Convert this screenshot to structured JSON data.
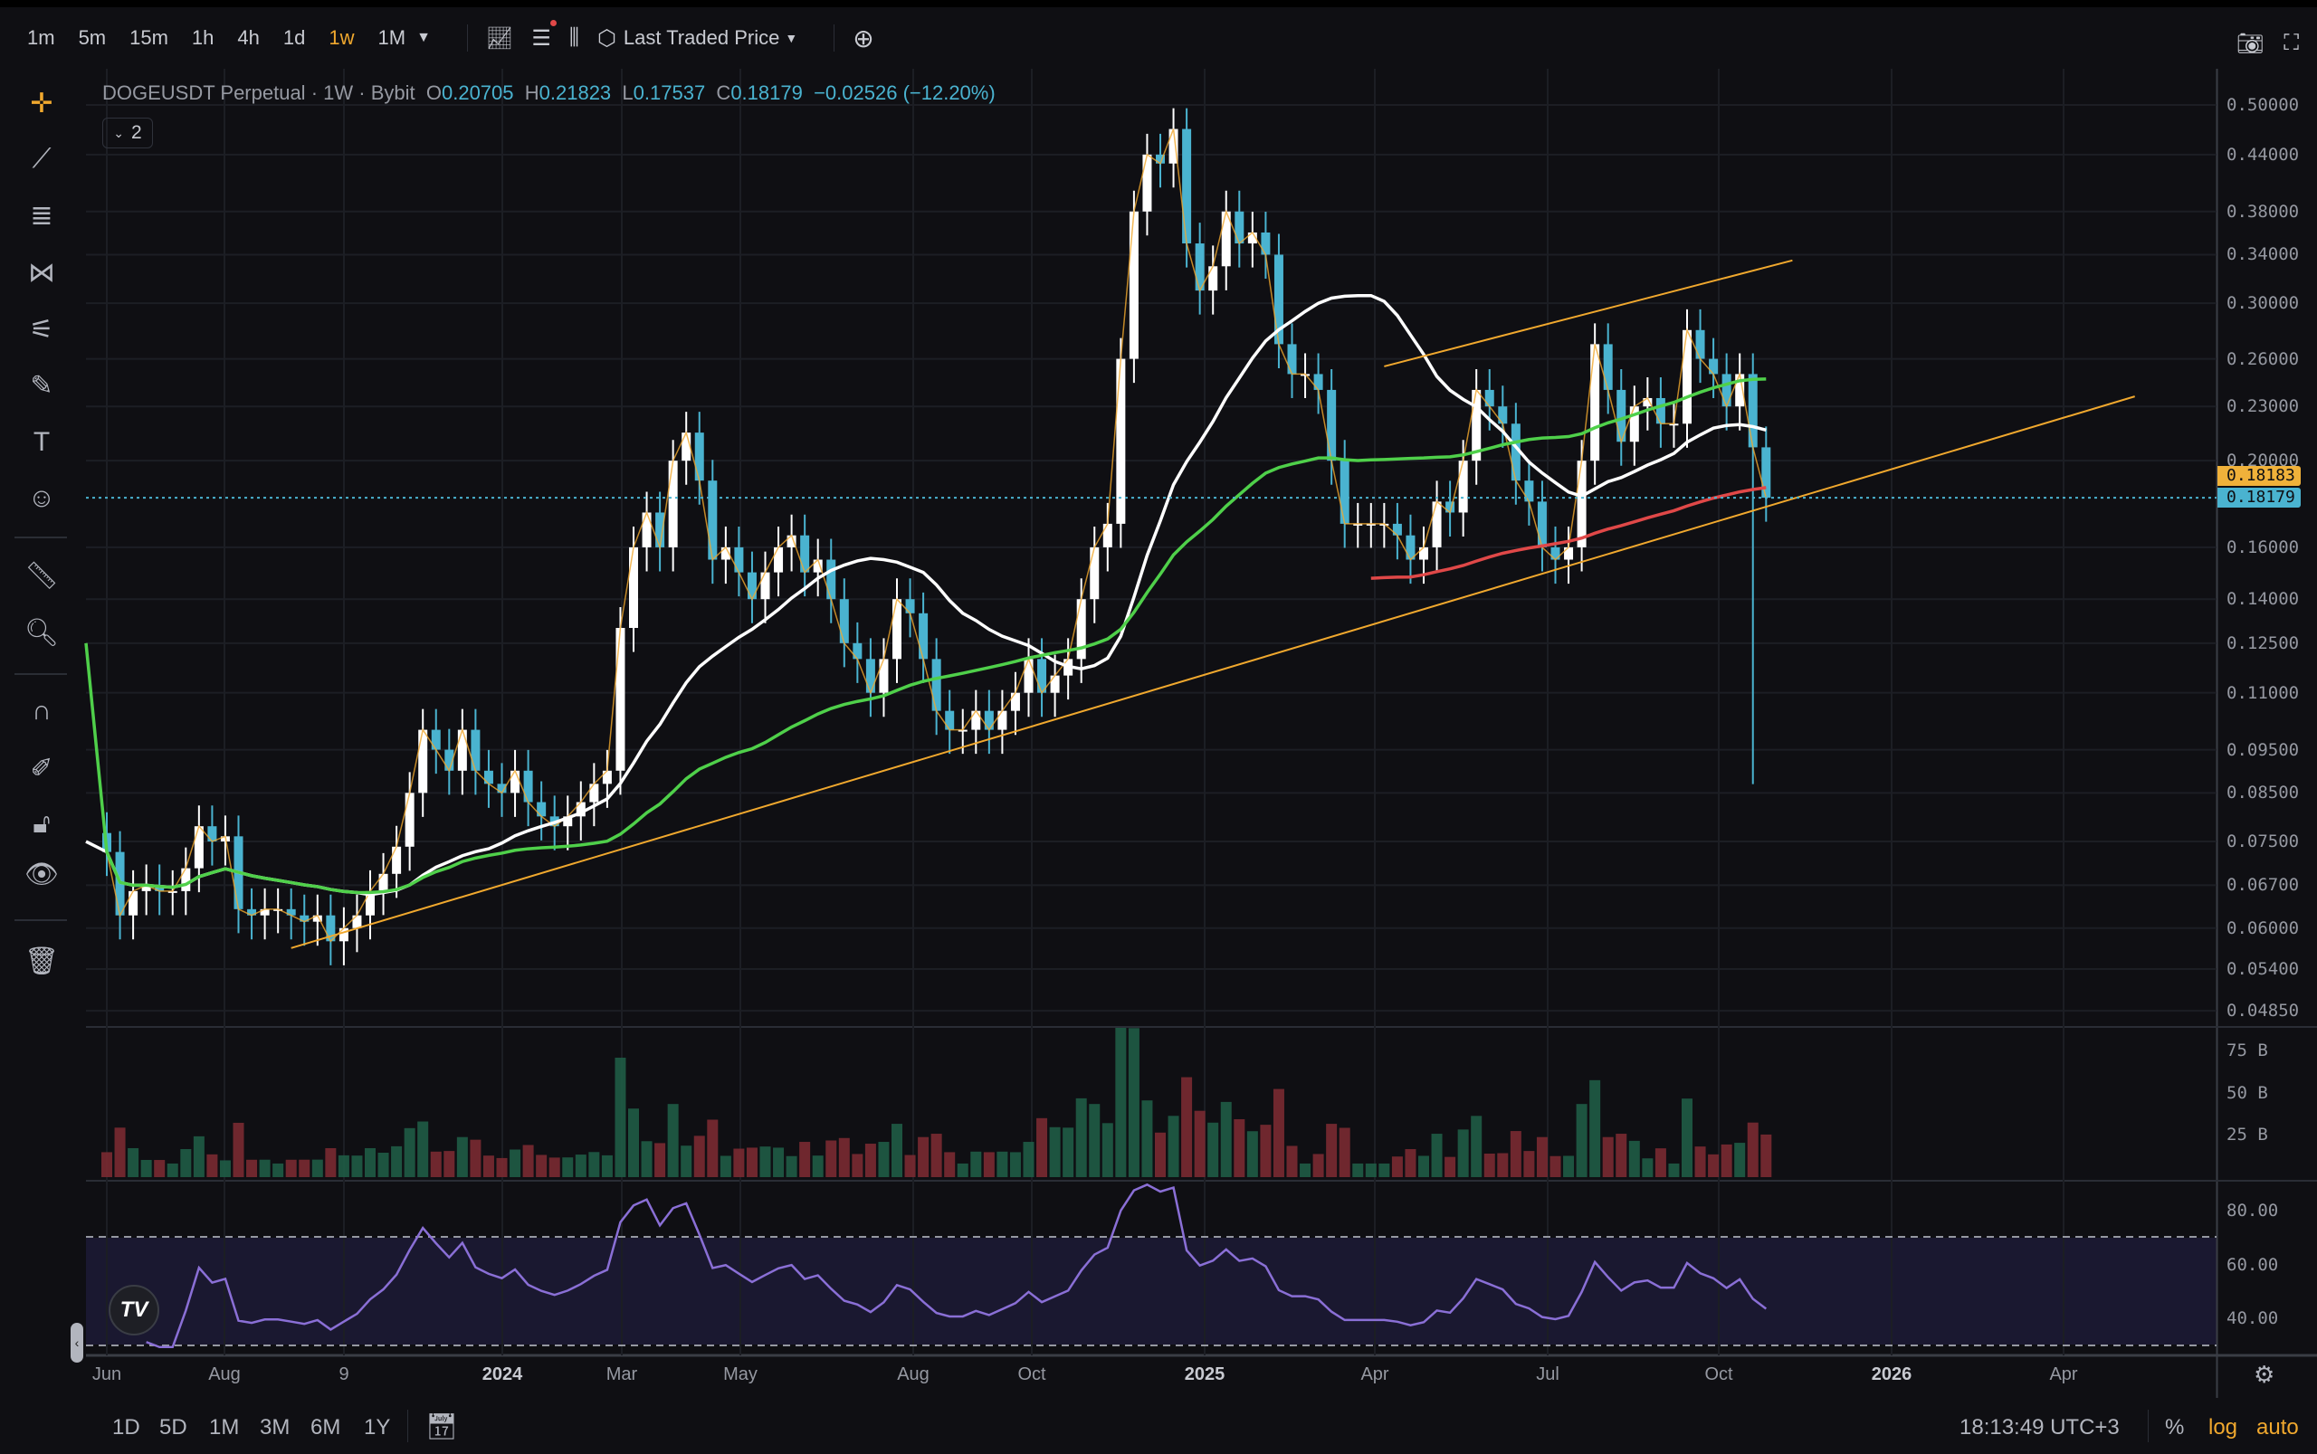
{
  "toolbar": {
    "timeframes": [
      "1m",
      "5m",
      "15m",
      "1h",
      "4h",
      "1d",
      "1w",
      "1M"
    ],
    "active_timeframe": "1w",
    "price_source": "Last Traded Price",
    "icons": [
      "indicators-icon",
      "chart-settings-icon",
      "candle-type-icon",
      "price-source-icon",
      "add-icon",
      "camera-icon",
      "fullscreen-icon"
    ]
  },
  "legend": {
    "symbol": "DOGEUSDT Perpetual",
    "interval": "1W",
    "exchange": "Bybit",
    "open_label": "O",
    "open": "0.20705",
    "high_label": "H",
    "high": "0.21823",
    "low_label": "L",
    "low": "0.17537",
    "close_label": "C",
    "close": "0.18179",
    "change": "−0.02526 (−12.20%)",
    "collapsed_count": "2"
  },
  "price_axis": {
    "labels": [
      "0.50000",
      "0.44000",
      "0.38000",
      "0.34000",
      "0.30000",
      "0.26000",
      "0.23000",
      "0.20000",
      "0.16000",
      "0.14000",
      "0.12500",
      "0.11000",
      "0.09500",
      "0.08500",
      "0.07500",
      "0.06700",
      "0.06000",
      "0.05400",
      "0.04850"
    ],
    "badge_prev": "0.18183",
    "badge_last": "0.18179",
    "scale": "log"
  },
  "volume_axis": {
    "labels": [
      "75 B",
      "50 B",
      "25 B"
    ]
  },
  "rsi_axis": {
    "labels": [
      "80.00",
      "60.00",
      "40.00"
    ],
    "upper": 70,
    "lower": 30
  },
  "time_axis": {
    "labels": [
      "Jun",
      "Aug",
      "9",
      "2024",
      "Mar",
      "May",
      "Aug",
      "Oct",
      "2025",
      "Apr",
      "Jul",
      "Oct",
      "2026",
      "Apr"
    ],
    "bold": [
      "2024",
      "2025",
      "2026"
    ]
  },
  "bottom": {
    "ranges": [
      "1D",
      "5D",
      "1M",
      "3M",
      "6M",
      "1Y"
    ],
    "clock": "18:13:49 UTC+3",
    "percent": "%",
    "log": "log",
    "auto": "auto"
  },
  "colors": {
    "up": "#ffffff",
    "down": "#4ab3d0",
    "wick_line": "#f0a82e",
    "ma_fast": "#ffffff",
    "ma_mid": "#4fd04a",
    "ma_slow": "#e04848",
    "trendline": "#f0a82e",
    "rsi": "#8a6fd6",
    "accent": "#f0a82e",
    "last_price": "#4ab3d0"
  },
  "chart_data": {
    "type": "candlestick",
    "start_week": "2023-06-05",
    "interval": "1W",
    "closes": [
      0.073,
      0.062,
      0.066,
      0.067,
      0.066,
      0.066,
      0.07,
      0.078,
      0.075,
      0.076,
      0.063,
      0.062,
      0.063,
      0.063,
      0.062,
      0.061,
      0.062,
      0.058,
      0.06,
      0.062,
      0.066,
      0.069,
      0.074,
      0.085,
      0.1,
      0.095,
      0.09,
      0.1,
      0.09,
      0.087,
      0.085,
      0.09,
      0.083,
      0.08,
      0.078,
      0.08,
      0.083,
      0.087,
      0.09,
      0.13,
      0.16,
      0.175,
      0.16,
      0.2,
      0.215,
      0.19,
      0.155,
      0.16,
      0.15,
      0.14,
      0.15,
      0.16,
      0.165,
      0.15,
      0.155,
      0.14,
      0.125,
      0.12,
      0.11,
      0.12,
      0.14,
      0.135,
      0.12,
      0.105,
      0.1,
      0.1,
      0.105,
      0.1,
      0.105,
      0.11,
      0.12,
      0.11,
      0.115,
      0.12,
      0.14,
      0.16,
      0.17,
      0.26,
      0.38,
      0.44,
      0.43,
      0.47,
      0.35,
      0.31,
      0.33,
      0.38,
      0.35,
      0.36,
      0.34,
      0.27,
      0.25,
      0.25,
      0.24,
      0.2,
      0.17,
      0.17,
      0.17,
      0.17,
      0.165,
      0.155,
      0.16,
      0.18,
      0.175,
      0.2,
      0.24,
      0.23,
      0.22,
      0.19,
      0.18,
      0.16,
      0.155,
      0.16,
      0.2,
      0.27,
      0.24,
      0.21,
      0.23,
      0.235,
      0.22,
      0.22,
      0.28,
      0.26,
      0.25,
      0.23,
      0.25,
      0.207,
      0.1818
    ],
    "trendlines": [
      {
        "from": [
          "2023-09-11",
          0.057
        ],
        "to": [
          "2026-05-18",
          0.236
        ]
      },
      {
        "from": [
          "2025-04-14",
          0.255
        ],
        "to": [
          "2025-11-17",
          0.335
        ]
      }
    ],
    "ylim": [
      0.0485,
      0.5
    ]
  }
}
